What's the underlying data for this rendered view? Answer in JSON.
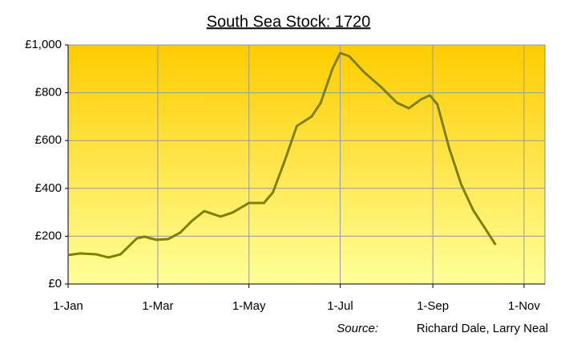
{
  "chart_data": {
    "type": "line",
    "title": "South Sea Stock: 1720",
    "source_label": "Source:",
    "source": "Richard Dale, Larry Neal",
    "x": [
      0,
      8,
      19,
      27,
      35,
      46,
      51,
      59,
      67,
      75,
      83,
      91,
      102,
      110,
      121,
      131,
      137,
      145,
      153,
      163,
      169,
      177,
      182,
      188,
      198,
      209,
      220,
      228,
      236,
      242,
      247,
      255,
      263,
      271,
      279,
      286
    ],
    "series": [
      {
        "color": "#808000",
        "values": [
          121,
          128,
          124,
          111,
          124,
          191,
          198,
          185,
          188,
          215,
          265,
          305,
          282,
          299,
          339,
          339,
          383,
          517,
          661,
          701,
          758,
          903,
          966,
          953,
          886,
          826,
          758,
          735,
          772,
          789,
          752,
          567,
          416,
          309,
          232,
          164
        ]
      }
    ],
    "xlim": [
      0,
      319
    ],
    "xticks": [
      {
        "value": 0,
        "label": "1-Jan"
      },
      {
        "value": 60,
        "label": "1-Mar"
      },
      {
        "value": 121,
        "label": "1-May"
      },
      {
        "value": 182,
        "label": "1-Jul"
      },
      {
        "value": 244,
        "label": "1-Sep"
      },
      {
        "value": 305,
        "label": "1-Nov"
      }
    ],
    "ylim": [
      0,
      1000
    ],
    "yticks": [
      {
        "value": 0,
        "label": "£0"
      },
      {
        "value": 200,
        "label": "£200"
      },
      {
        "value": 400,
        "label": "£400"
      },
      {
        "value": 600,
        "label": "£600"
      },
      {
        "value": 800,
        "label": "£800"
      },
      {
        "value": 1000,
        "label": "£1,000"
      }
    ],
    "grid": true
  }
}
